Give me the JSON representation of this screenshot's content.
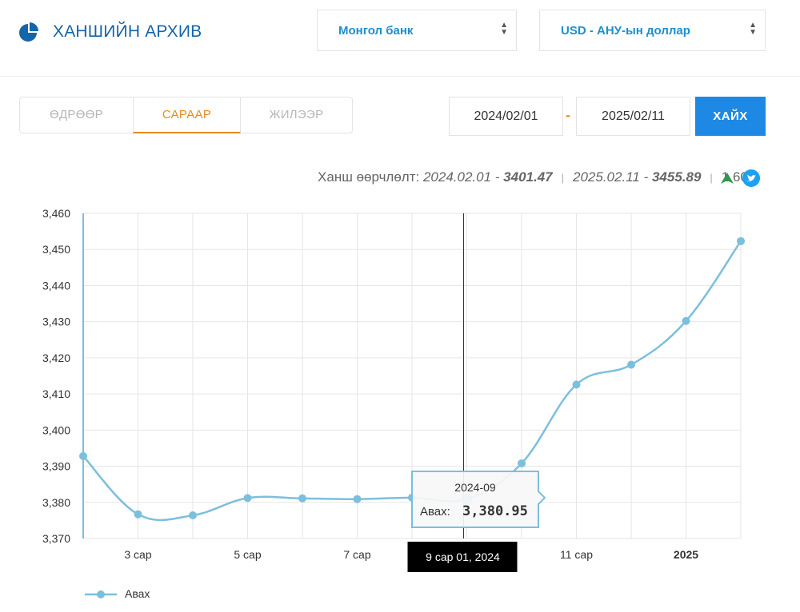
{
  "header": {
    "title": "ХАНШИЙН АРХИВ",
    "bank_select": "Монгол банк",
    "currency_select": "USD - АНУ-ын доллар"
  },
  "tabs": [
    {
      "label": "ӨДРӨӨР",
      "active": false
    },
    {
      "label": "САРААР",
      "active": true
    },
    {
      "label": "ЖИЛЭЭР",
      "active": false
    }
  ],
  "filters": {
    "date_from": "2024/02/01",
    "separator": "-",
    "date_to": "2025/02/11",
    "search_label": "ХАЙХ"
  },
  "summary": {
    "label": "Ханш өөрчлөлт:",
    "start_date": "2024.02.01",
    "start_value": "3401.47",
    "end_date": "2025.02.11",
    "end_value": "3455.89",
    "change": "1.60%",
    "direction": "up"
  },
  "colors": {
    "accent": "#e8891c",
    "brand": "#1565a8",
    "button": "#1e88e5",
    "series": "#7cbfdd",
    "up": "#2e9a4e"
  },
  "chart_data": {
    "type": "line",
    "x": [
      "2024-02",
      "2024-03",
      "2024-04",
      "2024-05",
      "2024-06",
      "2024-07",
      "2024-08",
      "2024-09",
      "2024-10",
      "2024-11",
      "2024-12",
      "2025-01",
      "2025-02"
    ],
    "series": [
      {
        "name": "Авах",
        "values": [
          3392.8,
          3376.7,
          3376.4,
          3381.2,
          3381.1,
          3380.9,
          3381.3,
          3380.95,
          3390.8,
          3412.6,
          3418.1,
          3430.2,
          3452.3
        ]
      }
    ],
    "xticks": [
      {
        "index": 1,
        "label": "3 сар",
        "bold": false
      },
      {
        "index": 3,
        "label": "5 сар",
        "bold": false
      },
      {
        "index": 5,
        "label": "7 сар",
        "bold": false
      },
      {
        "index": 9,
        "label": "11 сар",
        "bold": false
      },
      {
        "index": 11,
        "label": "2025",
        "bold": true
      }
    ],
    "yticks": [
      "3,370",
      "3,380",
      "3,390",
      "3,400",
      "3,410",
      "3,420",
      "3,430",
      "3,440",
      "3,450",
      "3,460"
    ],
    "ylim": [
      3370,
      3460
    ],
    "grid": true,
    "legend": "bottom-left",
    "tooltip": {
      "index": 7,
      "date": "2024-09",
      "series_label": "Авах:",
      "value": "3,380.95",
      "crosshair_label": "9 сар 01, 2024"
    }
  }
}
